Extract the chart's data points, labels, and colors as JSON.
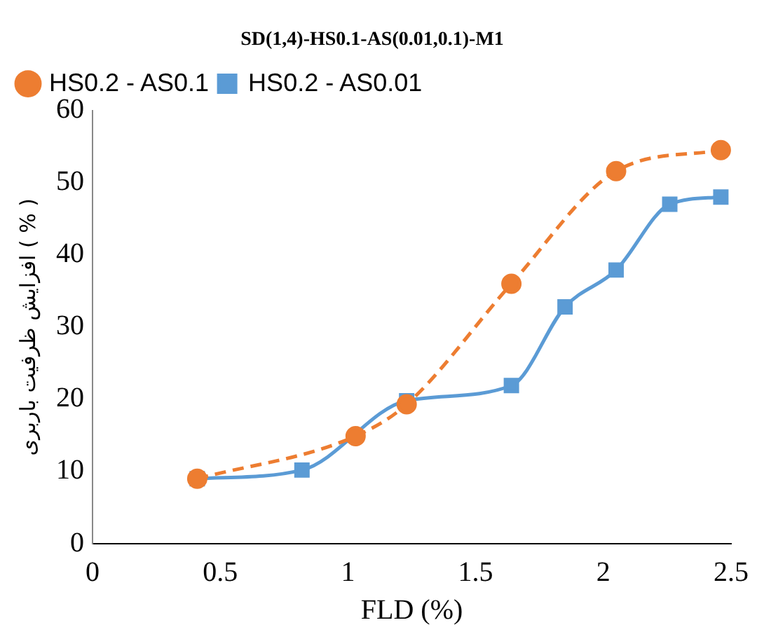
{
  "chart_data": {
    "type": "line",
    "title": "SD(1,4)-HS0.1-AS(0.01,0.1)-M1",
    "xlabel": "FLD (%)",
    "ylabel": "افزایش ظرفیت باربری ( % )",
    "xlim": [
      0,
      2.5
    ],
    "xticks": [
      0,
      0.5,
      1,
      1.5,
      2,
      2.5
    ],
    "ylim": [
      0,
      60
    ],
    "yticks": [
      0,
      10,
      20,
      30,
      40,
      50,
      60
    ],
    "grid": false,
    "legend": "top left",
    "series": [
      {
        "name": "HS0.2 - AS0.01",
        "color": "#5b9bd5",
        "marker": "square",
        "line_style": "solid",
        "x": [
          0.41,
          0.82,
          1.23,
          1.64,
          1.85,
          2.05,
          2.26,
          2.46
        ],
        "values": [
          9.0,
          10.2,
          19.8,
          21.9,
          32.8,
          37.9,
          47.0,
          48.0
        ]
      },
      {
        "name": "HS0.2 - AS0.1",
        "color": "#ed7d31",
        "marker": "circle",
        "line_style": "dashed",
        "x": [
          0.41,
          1.03,
          1.23,
          1.64,
          2.05,
          2.46
        ],
        "values": [
          9.0,
          14.9,
          19.3,
          36.0,
          51.6,
          54.5
        ]
      }
    ]
  }
}
